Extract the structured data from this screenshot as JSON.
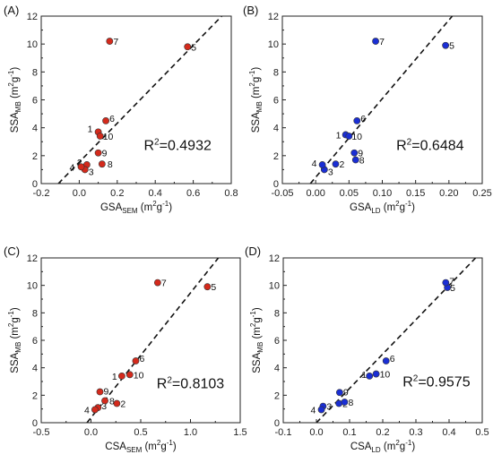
{
  "colors": {
    "red": "#d42a1c",
    "blue": "#1a2ed4",
    "frame": "#222222",
    "fit": "#111111"
  },
  "chart_data": [
    {
      "type": "scatter",
      "panel": "(A)",
      "xlabel": "GSA",
      "xlabel_sub": "SEM",
      "xlabel_unit": " (m",
      "xlabel_unit2": "g",
      "ylabel": "SSA",
      "ylabel_sub": "MB",
      "ylabel_unit": " (m",
      "ylabel_unit2": "g",
      "xlim": [
        -0.2,
        0.8
      ],
      "xticks": [
        -0.2,
        0.0,
        0.2,
        0.4,
        0.6,
        0.8
      ],
      "xtick_labels": [
        "-0.2",
        "0.0",
        "0.2",
        "0.4",
        "0.6",
        "0.8"
      ],
      "ylim": [
        0,
        12
      ],
      "yticks": [
        0,
        2,
        4,
        6,
        8,
        10,
        12
      ],
      "ytick_labels": [
        "0",
        "2",
        "4",
        "6",
        "8",
        "10",
        "12"
      ],
      "marker_color": "red",
      "r2_label": "=0.4932",
      "fit_line": [
        [
          -0.11,
          0
        ],
        [
          0.75,
          12
        ]
      ],
      "points": [
        {
          "label": "1",
          "x": 0.1,
          "y": 3.7,
          "lx": -12,
          "ly": 0
        },
        {
          "label": "2",
          "x": 0.04,
          "y": 1.35,
          "lx": -11,
          "ly": 1
        },
        {
          "label": "3",
          "x": 0.03,
          "y": 1.0,
          "lx": 4,
          "ly": 6
        },
        {
          "label": "4",
          "x": 0.01,
          "y": 1.2,
          "lx": -13,
          "ly": 4
        },
        {
          "label": "5",
          "x": 0.57,
          "y": 9.8,
          "lx": 4,
          "ly": 4
        },
        {
          "label": "6",
          "x": 0.14,
          "y": 4.5,
          "lx": 4,
          "ly": 1
        },
        {
          "label": "7",
          "x": 0.16,
          "y": 10.2,
          "lx": 4,
          "ly": 4
        },
        {
          "label": "8",
          "x": 0.12,
          "y": 1.4,
          "lx": 6,
          "ly": 4
        },
        {
          "label": "9",
          "x": 0.1,
          "y": 2.2,
          "lx": 4,
          "ly": 4
        },
        {
          "label": "10",
          "x": 0.11,
          "y": 3.4,
          "lx": 3,
          "ly": 4
        }
      ]
    },
    {
      "type": "scatter",
      "panel": "(B)",
      "xlabel": "GSA",
      "xlabel_sub": "LD",
      "xlabel_unit": " (m",
      "xlabel_unit2": "g",
      "ylabel": "SSA",
      "ylabel_sub": "MB",
      "ylabel_unit": " (m",
      "ylabel_unit2": "g",
      "xlim": [
        -0.05,
        0.25
      ],
      "xticks": [
        -0.05,
        0.0,
        0.05,
        0.1,
        0.15,
        0.2,
        0.25
      ],
      "xtick_labels": [
        "-0.05",
        "0.00",
        "0.05",
        "0.10",
        "0.15",
        "0.20",
        "0.25"
      ],
      "ylim": [
        0,
        12
      ],
      "yticks": [
        0,
        2,
        4,
        6,
        8,
        10,
        12
      ],
      "ytick_labels": [
        "0",
        "2",
        "4",
        "6",
        "8",
        "10",
        "12"
      ],
      "marker_color": "blue",
      "r2_label": "=0.6484",
      "fit_line": [
        [
          -0.008,
          0
        ],
        [
          0.205,
          12
        ]
      ],
      "points": [
        {
          "label": "1",
          "x": 0.045,
          "y": 3.5,
          "lx": -11,
          "ly": 4
        },
        {
          "label": "2",
          "x": 0.03,
          "y": 1.4,
          "lx": 4,
          "ly": 4
        },
        {
          "label": "3",
          "x": 0.013,
          "y": 1.0,
          "lx": 4,
          "ly": 6
        },
        {
          "label": "4",
          "x": 0.01,
          "y": 1.35,
          "lx": -12,
          "ly": 2
        },
        {
          "label": "5",
          "x": 0.195,
          "y": 9.9,
          "lx": 4,
          "ly": 4
        },
        {
          "label": "6",
          "x": 0.062,
          "y": 4.5,
          "lx": 4,
          "ly": 1
        },
        {
          "label": "7",
          "x": 0.09,
          "y": 10.2,
          "lx": 4,
          "ly": 4
        },
        {
          "label": "8",
          "x": 0.06,
          "y": 1.7,
          "lx": 4,
          "ly": 4
        },
        {
          "label": "9",
          "x": 0.058,
          "y": 2.2,
          "lx": 4,
          "ly": 4
        },
        {
          "label": "10",
          "x": 0.05,
          "y": 3.4,
          "lx": 3,
          "ly": 4
        }
      ]
    },
    {
      "type": "scatter",
      "panel": "(C)",
      "xlabel": "CSA",
      "xlabel_sub": "SEM",
      "xlabel_unit": " (m",
      "xlabel_unit2": "g",
      "ylabel": "SSA",
      "ylabel_sub": "MB",
      "ylabel_unit": " (m",
      "ylabel_unit2": "g",
      "xlim": [
        -0.5,
        1.5
      ],
      "xticks": [
        -0.5,
        0.0,
        0.5,
        1.0,
        1.5
      ],
      "xtick_labels": [
        "-0.5",
        "0.0",
        "0.5",
        "1.0",
        "1.5"
      ],
      "ylim": [
        0,
        12
      ],
      "yticks": [
        0,
        2,
        4,
        6,
        8,
        10,
        12
      ],
      "ytick_labels": [
        "0",
        "2",
        "4",
        "6",
        "8",
        "10",
        "12"
      ],
      "marker_color": "red",
      "r2_label": "=0.8103",
      "fit_line": [
        [
          -0.04,
          0
        ],
        [
          1.28,
          12
        ]
      ],
      "points": [
        {
          "label": "1",
          "x": 0.31,
          "y": 3.4,
          "lx": -11,
          "ly": 4
        },
        {
          "label": "2",
          "x": 0.26,
          "y": 1.4,
          "lx": 4,
          "ly": 4
        },
        {
          "label": "3",
          "x": 0.07,
          "y": 1.1,
          "lx": 4,
          "ly": 2
        },
        {
          "label": "4",
          "x": 0.04,
          "y": 0.95,
          "lx": -12,
          "ly": 4
        },
        {
          "label": "5",
          "x": 1.17,
          "y": 9.9,
          "lx": 4,
          "ly": 4
        },
        {
          "label": "6",
          "x": 0.45,
          "y": 4.5,
          "lx": 4,
          "ly": 1
        },
        {
          "label": "7",
          "x": 0.67,
          "y": 10.2,
          "lx": 4,
          "ly": 4
        },
        {
          "label": "8",
          "x": 0.14,
          "y": 1.6,
          "lx": 5,
          "ly": 4
        },
        {
          "label": "9",
          "x": 0.09,
          "y": 2.25,
          "lx": 4,
          "ly": 3
        },
        {
          "label": "10",
          "x": 0.39,
          "y": 3.5,
          "lx": 4,
          "ly": 4
        }
      ]
    },
    {
      "type": "scatter",
      "panel": "(D)",
      "xlabel": "CSA",
      "xlabel_sub": "LD",
      "xlabel_unit": " (m",
      "xlabel_unit2": "g",
      "ylabel": "SSA",
      "ylabel_sub": "MB",
      "ylabel_unit": " (m",
      "ylabel_unit2": "g",
      "xlim": [
        -0.1,
        0.5
      ],
      "xticks": [
        -0.1,
        0.0,
        0.1,
        0.2,
        0.3,
        0.4,
        0.5
      ],
      "xtick_labels": [
        "-0.1",
        "0.0",
        "0.1",
        "0.2",
        "0.3",
        "0.4",
        "0.5"
      ],
      "ylim": [
        0,
        12
      ],
      "yticks": [
        0,
        2,
        4,
        6,
        8,
        10,
        12
      ],
      "ytick_labels": [
        "0",
        "2",
        "4",
        "6",
        "8",
        "10",
        "12"
      ],
      "marker_color": "blue",
      "r2_label": "=0.9575",
      "fit_line": [
        [
          0.0,
          0
        ],
        [
          0.48,
          12
        ]
      ],
      "points": [
        {
          "label": "1",
          "x": 0.16,
          "y": 3.4,
          "lx": -9,
          "ly": 2
        },
        {
          "label": "2",
          "x": 0.068,
          "y": 1.4,
          "lx": 4,
          "ly": 4
        },
        {
          "label": "3",
          "x": 0.02,
          "y": 1.2,
          "lx": 4,
          "ly": 4
        },
        {
          "label": "4",
          "x": 0.015,
          "y": 0.95,
          "lx": -12,
          "ly": 4
        },
        {
          "label": "5",
          "x": 0.395,
          "y": 9.85,
          "lx": 3,
          "ly": 4
        },
        {
          "label": "6",
          "x": 0.21,
          "y": 4.5,
          "lx": 4,
          "ly": 1
        },
        {
          "label": "7",
          "x": 0.39,
          "y": 10.2,
          "lx": 4,
          "ly": 2
        },
        {
          "label": "8",
          "x": 0.085,
          "y": 1.5,
          "lx": 4,
          "ly": 4
        },
        {
          "label": "9",
          "x": 0.07,
          "y": 2.2,
          "lx": 4,
          "ly": 3
        },
        {
          "label": "10",
          "x": 0.18,
          "y": 3.55,
          "lx": 4,
          "ly": 4
        }
      ]
    }
  ]
}
